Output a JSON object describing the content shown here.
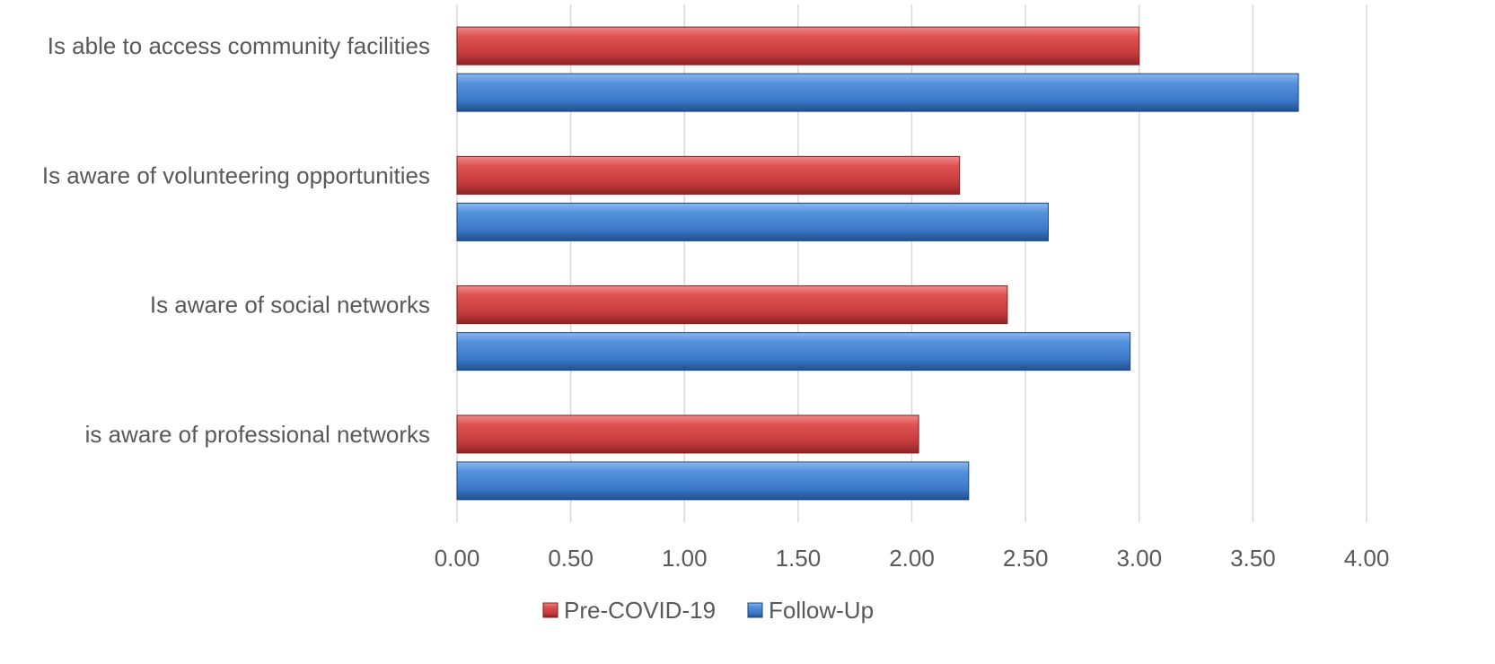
{
  "chart_data": {
    "type": "bar",
    "orientation": "horizontal",
    "title": "",
    "xlabel": "",
    "ylabel": "",
    "categories": [
      "Is able to access community facilities",
      "Is aware of volunteering opportunities",
      "Is aware of social networks",
      "is aware of professional networks"
    ],
    "series": [
      {
        "name": "Pre-COVID-19",
        "color": "#c0393b",
        "values": [
          3.0,
          2.21,
          2.42,
          2.03
        ]
      },
      {
        "name": "Follow-Up",
        "color": "#3a78c9",
        "values": [
          3.7,
          2.6,
          2.96,
          2.25
        ]
      }
    ],
    "xlim": [
      0,
      4
    ],
    "x_ticks": [
      "0.00",
      "0.50",
      "1.00",
      "1.50",
      "2.00",
      "2.50",
      "3.00",
      "3.50",
      "4.00"
    ],
    "grid": true,
    "legend_position": "bottom"
  }
}
